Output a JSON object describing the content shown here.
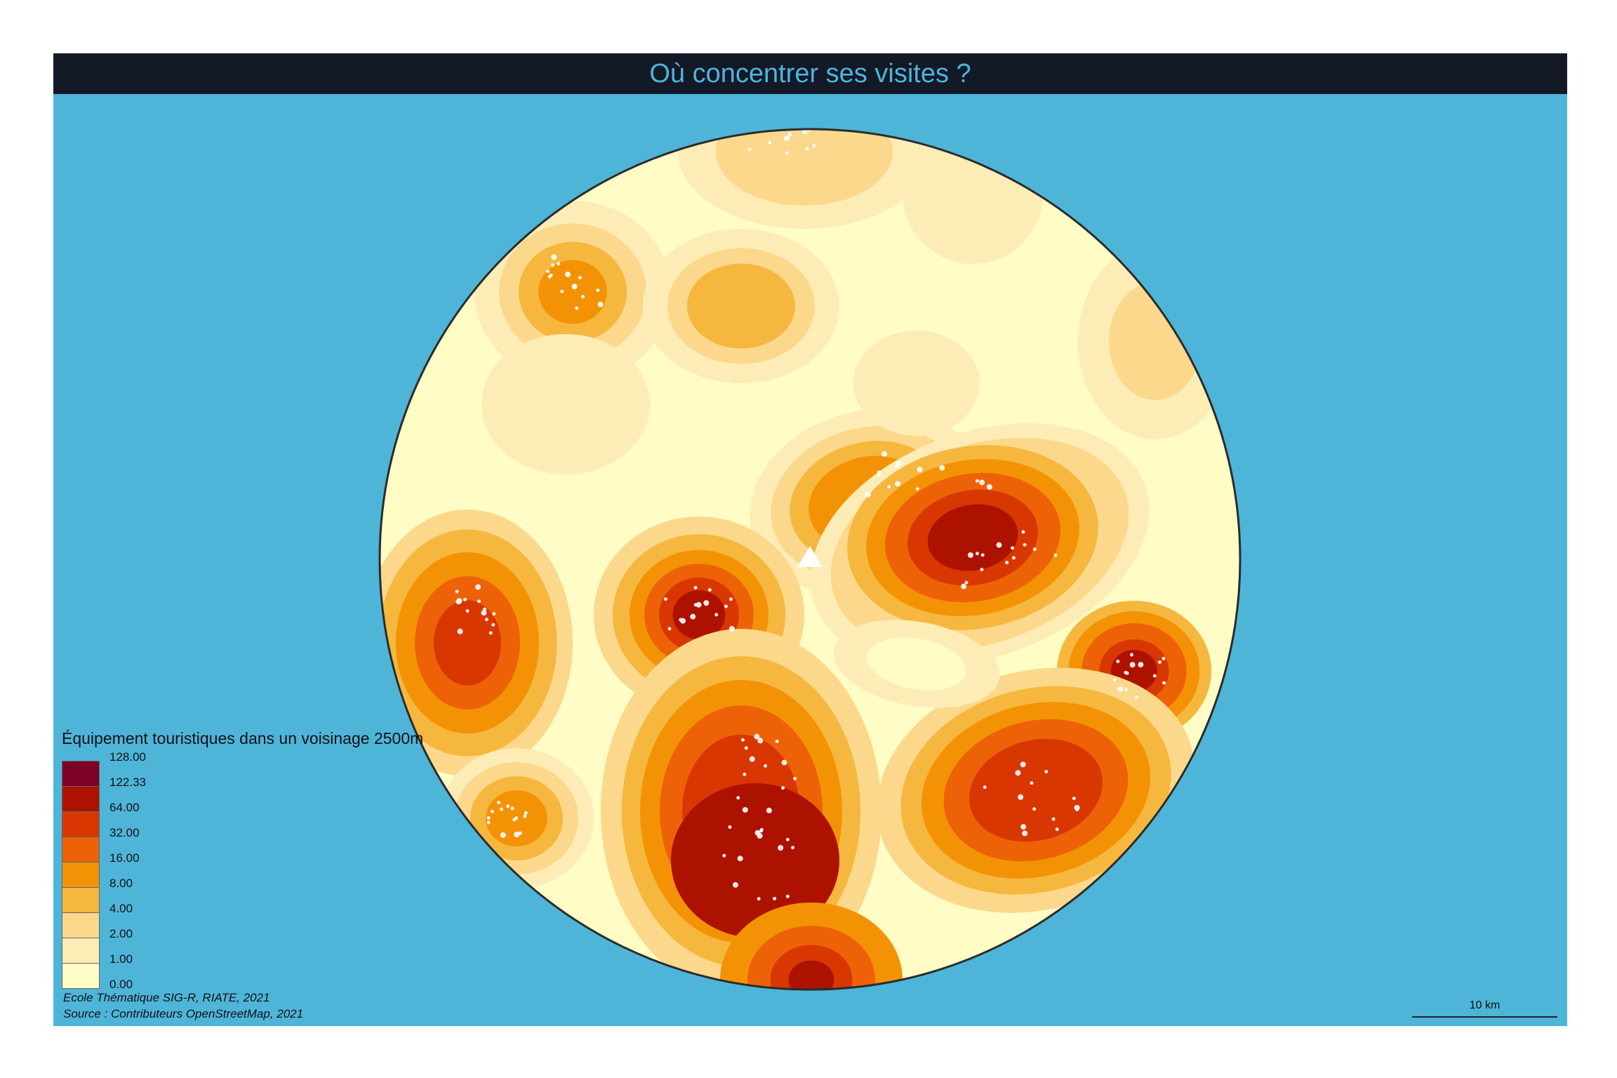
{
  "title": "Où concentrer ses visites ?",
  "legend": {
    "title": "Équipement touristiques dans un voisinage 2500m",
    "classes": [
      {
        "label": "128.00",
        "color": "#7d0025"
      },
      {
        "label": "122.33",
        "color": "#ad1200"
      },
      {
        "label": "64.00",
        "color": "#d83702"
      },
      {
        "label": "32.00",
        "color": "#ee6207"
      },
      {
        "label": "16.00",
        "color": "#f49206"
      },
      {
        "label": "8.00",
        "color": "#f6b73f"
      },
      {
        "label": "4.00",
        "color": "#fbd88b"
      },
      {
        "label": "2.00",
        "color": "#feecb6"
      },
      {
        "label": "1.00",
        "color": "#fffcc5"
      }
    ],
    "bottom_label": "0.00"
  },
  "credits": {
    "line1": "Ecole Thématique SIG-R, RIATE, 2021",
    "line2": "Source : Contributeurs OpenStreetMap, 2021"
  },
  "scale": {
    "label": "10 km"
  },
  "colors": {
    "background": "#4eb5d9",
    "title_bar": "#131927",
    "title_text": "#4eb5d9",
    "points": "#ffffff"
  },
  "icons": {
    "center_marker": "triangle-icon"
  }
}
